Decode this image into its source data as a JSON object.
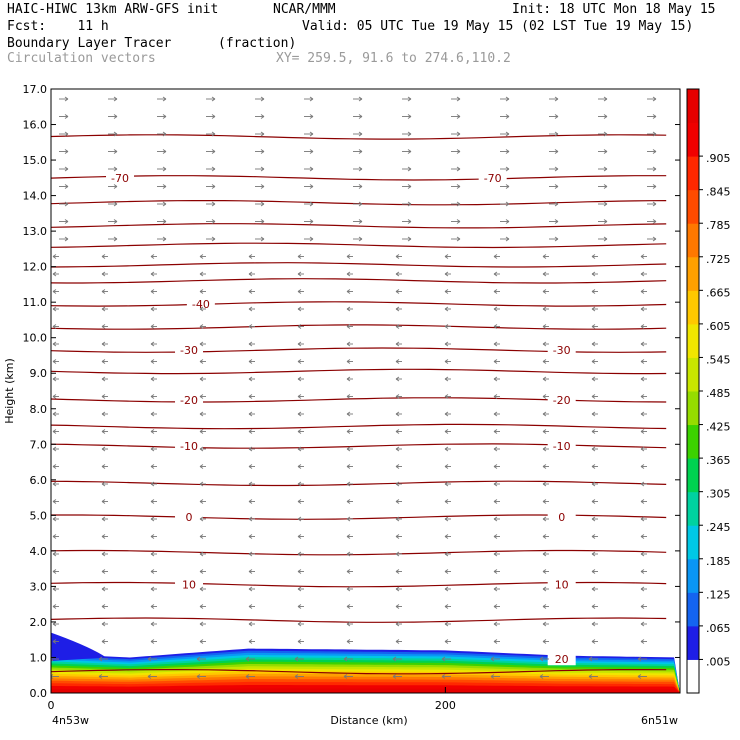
{
  "header": {
    "model": "HAIC-HIWC 13km ARW-GFS init",
    "org": "NCAR/MMM",
    "init": "Init: 18 UTC Mon 18 May 15",
    "fcst": "Fcst:    11 h",
    "valid": "Valid: 05 UTC Tue 19 May 15 (02 LST Tue 19 May 15)",
    "field": "Boundary Layer Tracer",
    "units": "(fraction)",
    "overlay": "Circulation vectors",
    "xy": "XY= 259.5, 91.6 to 274.6,110.2"
  },
  "chart_data": {
    "type": "heatmap",
    "title": "Boundary Layer Tracer",
    "xlabel": "Distance (km)",
    "ylabel": "Height (km)",
    "xlim": [
      0,
      319
    ],
    "ylim": [
      0,
      17
    ],
    "x_ticks": [
      0,
      200
    ],
    "x_end_labels": [
      "4n53w",
      "6n51w"
    ],
    "y_ticks": [
      "0.0",
      "1.0",
      "2.0",
      "3.0",
      "4.0",
      "5.0",
      "6.0",
      "7.0",
      "8.0",
      "9.0",
      "10.0",
      "11.0",
      "12.0",
      "13.0",
      "14.0",
      "15.0",
      "16.0",
      "17.0"
    ],
    "colorbar": {
      "levels": [
        ".005",
        ".065",
        ".125",
        ".185",
        ".245",
        ".305",
        ".365",
        ".425",
        ".485",
        ".545",
        ".605",
        ".665",
        ".725",
        ".785",
        ".845",
        ".905"
      ],
      "colors": [
        "#ffffff",
        "#1e1ee6",
        "#1464f0",
        "#0a96f5",
        "#00c8e6",
        "#00d2a0",
        "#00d250",
        "#3cd200",
        "#96dc00",
        "#c8e600",
        "#f0e600",
        "#ffc800",
        "#ffa000",
        "#ff7800",
        "#ff4b00",
        "#ff2800",
        "#f00000",
        "#e60000"
      ]
    },
    "boundary_layer_top_km": [
      {
        "x": 0,
        "y": 1.1
      },
      {
        "x": 40,
        "y": 1.0
      },
      {
        "x": 100,
        "y": 1.25
      },
      {
        "x": 200,
        "y": 1.2
      },
      {
        "x": 260,
        "y": 1.05
      },
      {
        "x": 319,
        "y": 1.0
      }
    ],
    "temperature_contours": [
      {
        "label": "0",
        "height_km": 4.95
      },
      {
        "label": "-10",
        "height_km": 6.95
      },
      {
        "label": "-20",
        "height_km": 8.25
      },
      {
        "label": "-30",
        "height_km": 9.65
      },
      {
        "label": "-40",
        "height_km": 10.95
      },
      {
        "label": "-70",
        "height_km": 14.5
      },
      {
        "label": "10",
        "height_km": 3.05
      },
      {
        "label": "20",
        "height_km": 0.95
      }
    ],
    "contour_heights_km": [
      0.6,
      2.05,
      3.05,
      3.95,
      4.95,
      5.9,
      6.95,
      7.5,
      8.25,
      9.05,
      9.65,
      10.3,
      10.95,
      11.6,
      12.05,
      12.6,
      13.15,
      13.8,
      14.5,
      15.65
    ],
    "contour_label_positions": [
      {
        "label": "-70",
        "x_km": 35,
        "height_km": 14.5
      },
      {
        "label": "-70",
        "x_km": 224,
        "height_km": 14.5
      },
      {
        "label": "-40",
        "x_km": 76,
        "height_km": 10.95
      },
      {
        "label": "-30",
        "x_km": 70,
        "height_km": 9.65
      },
      {
        "label": "-30",
        "x_km": 259,
        "height_km": 9.65
      },
      {
        "label": "-20",
        "x_km": 70,
        "height_km": 8.25
      },
      {
        "label": "-20",
        "x_km": 259,
        "height_km": 8.25
      },
      {
        "label": "-10",
        "x_km": 70,
        "height_km": 6.95
      },
      {
        "label": "-10",
        "x_km": 259,
        "height_km": 6.95
      },
      {
        "label": "0",
        "x_km": 70,
        "height_km": 4.95
      },
      {
        "label": "0",
        "x_km": 259,
        "height_km": 4.95
      },
      {
        "label": "10",
        "x_km": 70,
        "height_km": 3.05
      },
      {
        "label": "10",
        "x_km": 259,
        "height_km": 3.05
      },
      {
        "label": "20",
        "x_km": 259,
        "height_km": 0.95
      }
    ]
  }
}
